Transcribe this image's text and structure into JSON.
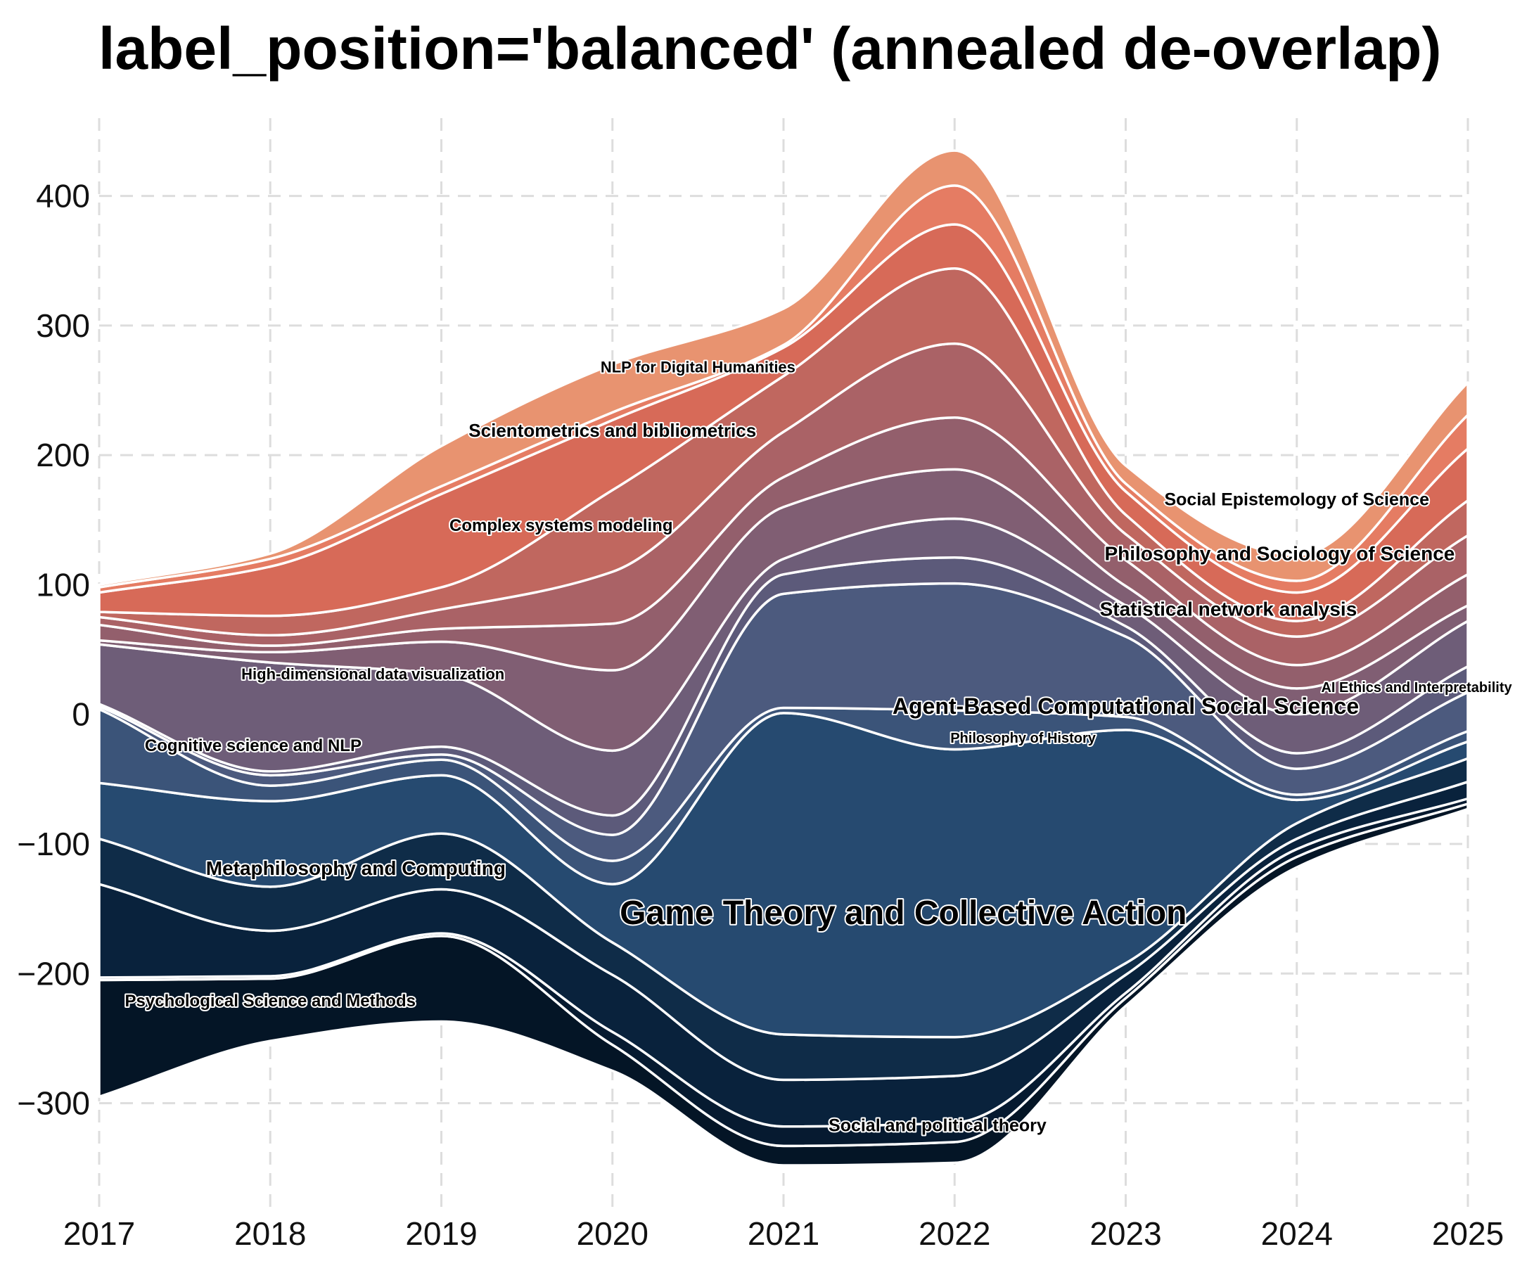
{
  "chart_data": {
    "type": "area",
    "subtype": "streamgraph",
    "title": "label_position='balanced' (annealed de-overlap)",
    "xlabel": "",
    "ylabel": "",
    "x": [
      2017,
      2018,
      2019,
      2020,
      2021,
      2022,
      2023,
      2024,
      2025
    ],
    "xlim": [
      2017,
      2025
    ],
    "ylim": [
      -380,
      460
    ],
    "yticks": [
      -300,
      -200,
      -100,
      0,
      100,
      200,
      300,
      400
    ],
    "grid": true,
    "baseline": [
      -295,
      -252,
      -237,
      -275,
      -348,
      -346,
      -225,
      -118,
      -73
    ],
    "series": [
      {
        "name": "Psychological Science and Methods",
        "color": "#041526",
        "values": [
          90,
          48,
          66,
          20,
          15,
          16,
          6,
          8,
          4
        ],
        "label_x": 2018.0,
        "label_y": -222,
        "label_size": 24
      },
      {
        "name": "Social and political theory",
        "color": "#061a30",
        "values": [
          2,
          2,
          2,
          10,
          15,
          15,
          4,
          6,
          4
        ],
        "label_x": 2021.9,
        "label_y": -318,
        "label_size": 25
      },
      {
        "name": "Metaphilosophy and Computing",
        "color": "#09223c",
        "values": [
          72,
          35,
          34,
          44,
          36,
          36,
          14,
          8,
          13
        ],
        "label_x": 2018.5,
        "label_y": -120,
        "label_size": 28
      },
      {
        "name": "Game Theory and Collective Action",
        "color": "#0f2c48",
        "values": [
          35,
          34,
          43,
          25,
          35,
          30,
          9,
          12,
          18
        ],
        "label_x": 2021.7,
        "label_y": -155,
        "label_size": 48
      },
      {
        "name": "",
        "color": "#264a70",
        "values": [
          43,
          66,
          45,
          45,
          248,
          222,
          180,
          18,
          13
        ],
        "label_x": null,
        "label_y": null,
        "label_size": 0
      },
      {
        "name": "Philosophy of History",
        "color": "#3b5479",
        "values": [
          57,
          12,
          12,
          18,
          4,
          30,
          10,
          4,
          8
        ],
        "label_x": 2022.4,
        "label_y": -19,
        "label_size": 20
      },
      {
        "name": "Cognitive science and NLP",
        "color": "#4c5a7e",
        "values": [
          2,
          8,
          4,
          20,
          88,
          98,
          62,
          20,
          30
        ],
        "label_x": 2017.9,
        "label_y": -25,
        "label_size": 24
      },
      {
        "name": "Agent-Based Computational Social Science",
        "color": "#5c5a7a",
        "values": [
          2,
          3,
          6,
          15,
          15,
          20,
          8,
          12,
          20
        ],
        "label_x": 2023.0,
        "label_y": 5,
        "label_size": 32
      },
      {
        "name": "High-dimensional data visualization",
        "color": "#6e5d78",
        "values": [
          46,
          84,
          56,
          50,
          12,
          30,
          16,
          30,
          35
        ],
        "label_x": 2018.6,
        "label_y": 30,
        "label_size": 22
      },
      {
        "name": "AI Ethics and Interpretability",
        "color": "#805e73",
        "values": [
          3,
          8,
          25,
          62,
          40,
          38,
          15,
          20,
          12
        ],
        "label_x": 2024.7,
        "label_y": 20,
        "label_size": 20
      },
      {
        "name": "Statistical network analysis",
        "color": "#935f6c",
        "values": [
          12,
          5,
          10,
          36,
          23,
          40,
          20,
          18,
          24
        ],
        "label_x": 2023.6,
        "label_y": 80,
        "label_size": 28
      },
      {
        "name": "Philosophy and Sociology of Science",
        "color": "#aa6266",
        "values": [
          6,
          8,
          15,
          40,
          35,
          57,
          20,
          22,
          30
        ],
        "label_x": 2023.9,
        "label_y": 123,
        "label_size": 28
      },
      {
        "name": "Social Epistemology of Science",
        "color": "#c0675f",
        "values": [
          4,
          15,
          17,
          63,
          43,
          58,
          15,
          12,
          27
        ],
        "label_x": 2024.0,
        "label_y": 165,
        "label_size": 25
      },
      {
        "name": "Complex systems modeling",
        "color": "#d76a58",
        "values": [
          15,
          38,
          72,
          54,
          22,
          34,
          18,
          22,
          40
        ],
        "label_x": 2019.7,
        "label_y": 145,
        "label_size": 24
      },
      {
        "name": "Scientometrics and bibliometrics",
        "color": "#e57c63",
        "values": [
          4,
          6,
          6,
          6,
          2,
          30,
          6,
          9,
          26
        ],
        "label_x": 2020.0,
        "label_y": 218,
        "label_size": 26
      },
      {
        "name": "NLP for Digital Humanities",
        "color": "#e89370",
        "values": [
          2,
          4,
          31,
          37,
          28,
          27,
          14,
          20,
          25
        ],
        "label_x": 2020.5,
        "label_y": 267,
        "label_size": 22
      }
    ]
  }
}
